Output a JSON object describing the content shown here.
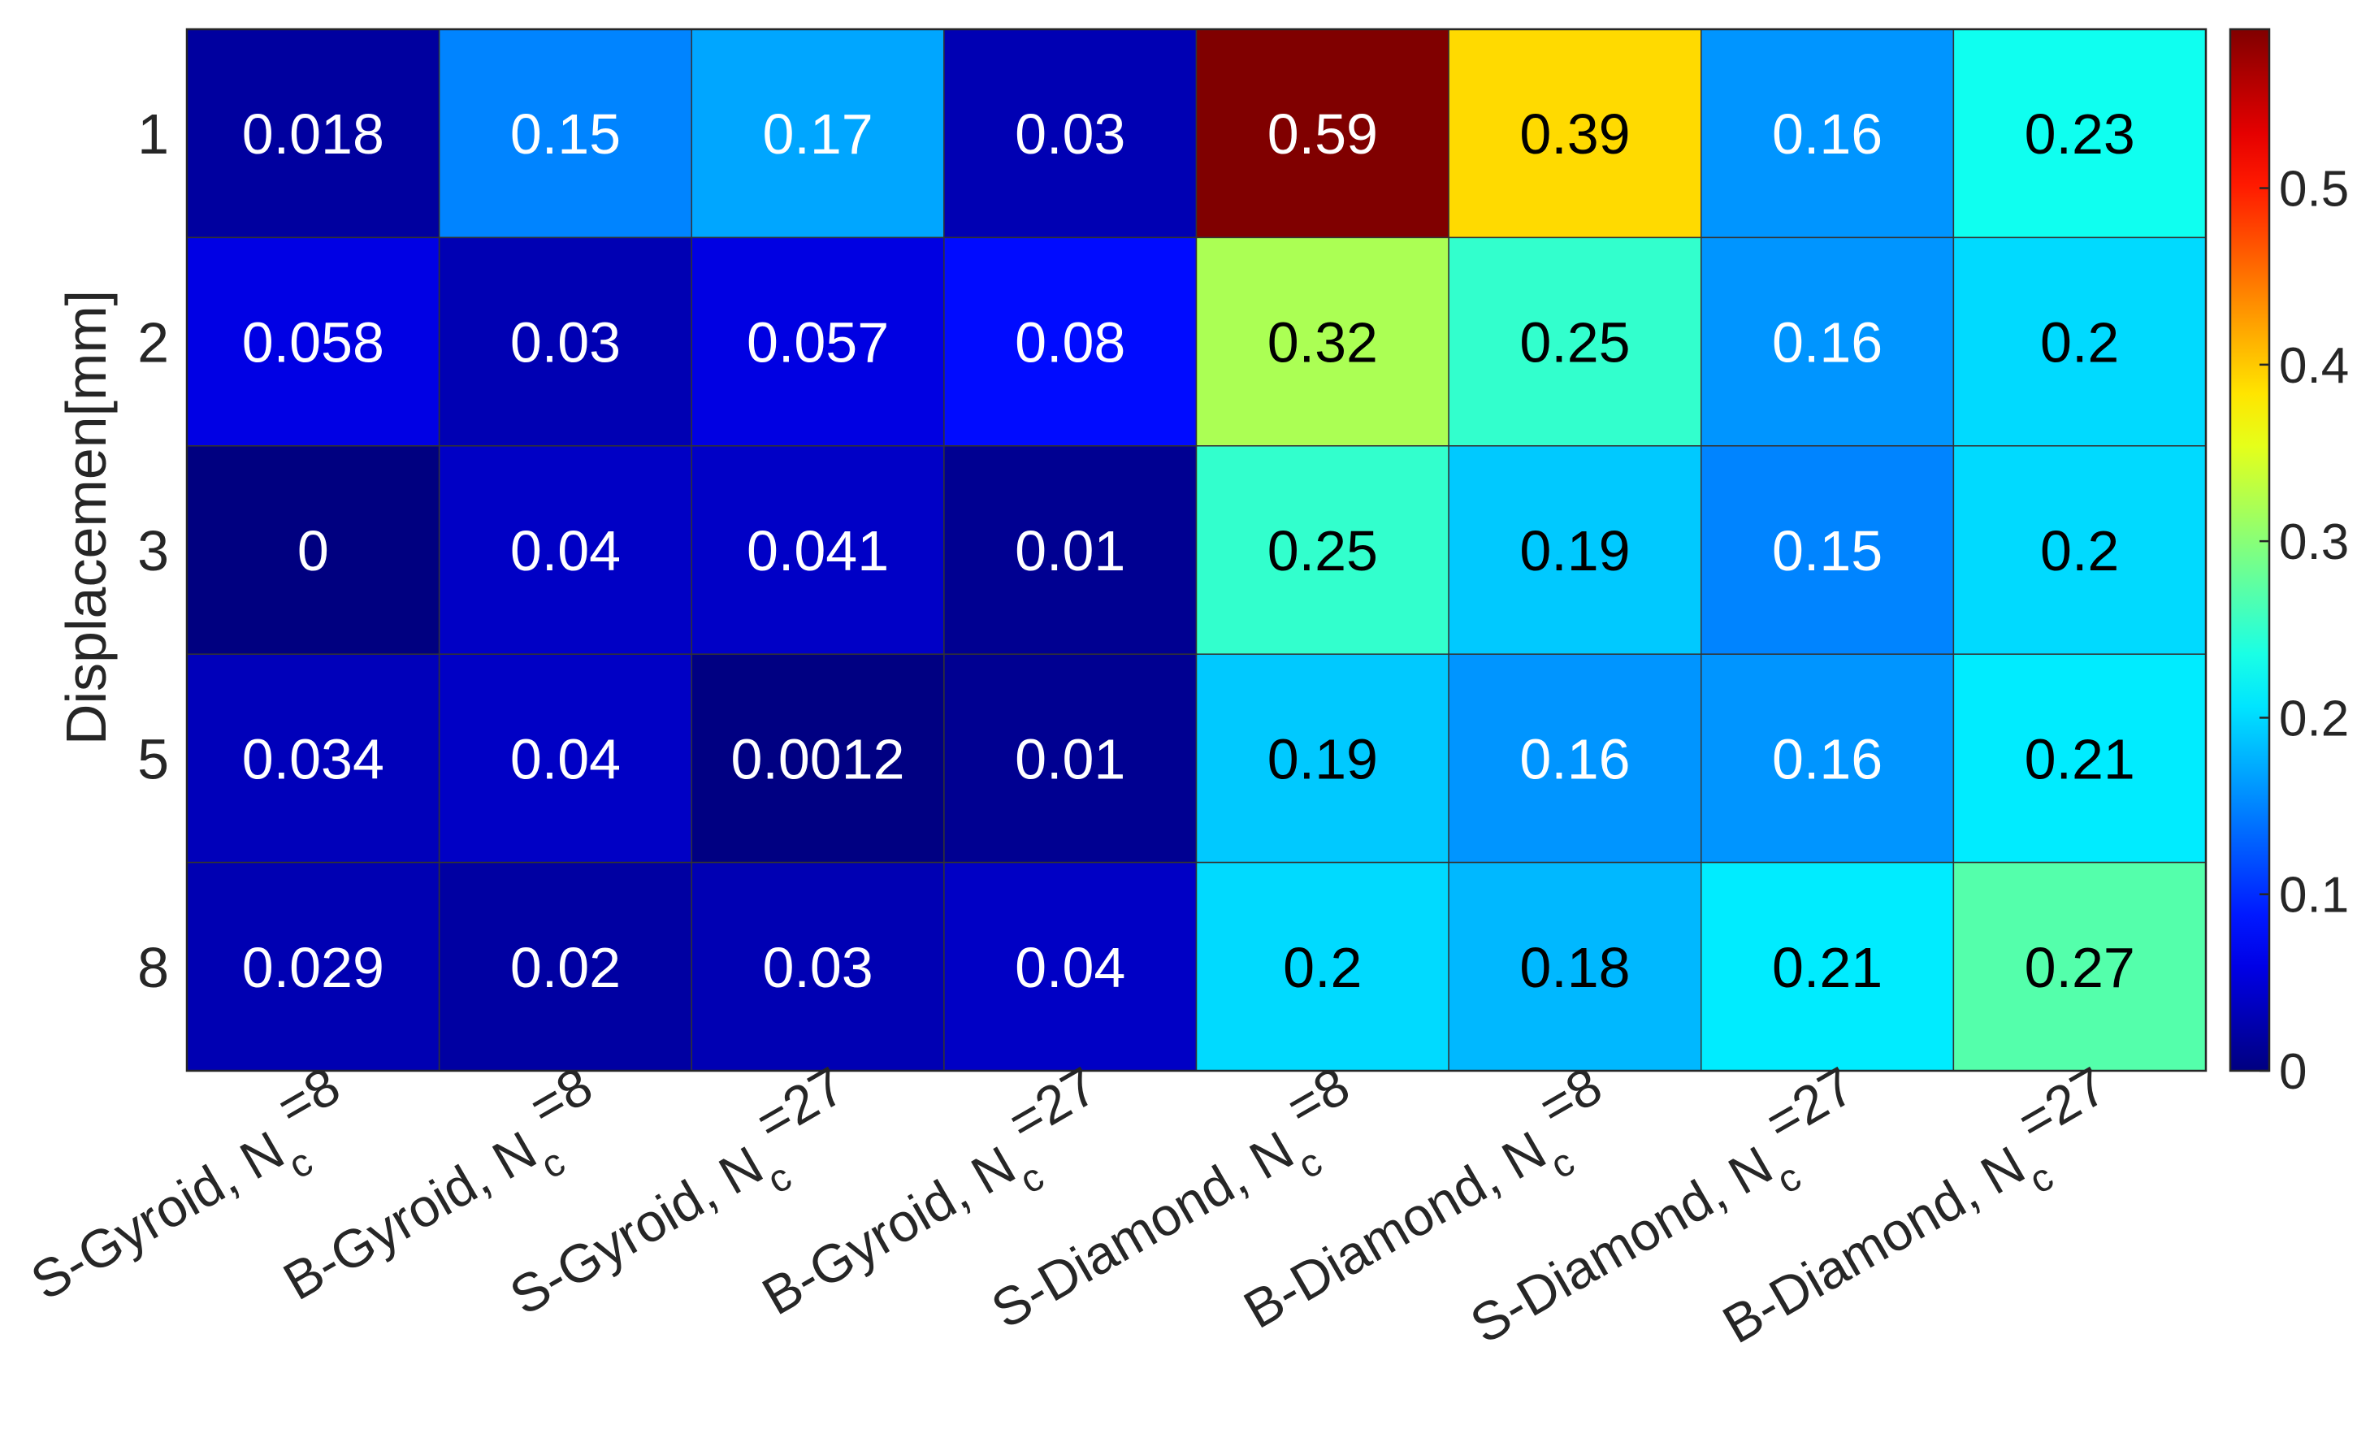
{
  "chart_data": {
    "type": "heatmap",
    "title": "",
    "xlabel": "",
    "ylabel": "Displacemen[mm]",
    "x_categories": [
      {
        "base": "S-Gyroid, N",
        "sub": "c",
        "suffix": "=8"
      },
      {
        "base": "B-Gyroid, N",
        "sub": "c",
        "suffix": "=8"
      },
      {
        "base": "S-Gyroid, N",
        "sub": "c",
        "suffix": "=27"
      },
      {
        "base": "B-Gyroid, N",
        "sub": "c",
        "suffix": "=27"
      },
      {
        "base": "S-Diamond, N",
        "sub": "c",
        "suffix": "=8"
      },
      {
        "base": "B-Diamond, N",
        "sub": "c",
        "suffix": "=8"
      },
      {
        "base": "S-Diamond, N",
        "sub": "c",
        "suffix": "=27"
      },
      {
        "base": "B-Diamond, N",
        "sub": "c",
        "suffix": "=27"
      }
    ],
    "y_categories": [
      "1",
      "2",
      "3",
      "5",
      "8"
    ],
    "values": [
      [
        "0.018",
        "0.15",
        "0.17",
        "0.03",
        "0.59",
        "0.39",
        "0.16",
        "0.23"
      ],
      [
        "0.058",
        "0.03",
        "0.057",
        "0.08",
        "0.32",
        "0.25",
        "0.16",
        "0.2"
      ],
      [
        "0",
        "0.04",
        "0.041",
        "0.01",
        "0.25",
        "0.19",
        "0.15",
        "0.2"
      ],
      [
        "0.034",
        "0.04",
        "0.0012",
        "0.01",
        "0.19",
        "0.16",
        "0.16",
        "0.21"
      ],
      [
        "0.029",
        "0.02",
        "0.03",
        "0.04",
        "0.2",
        "0.18",
        "0.21",
        "0.27"
      ]
    ],
    "colorbar": {
      "colormap": "jet",
      "range": [
        0,
        0.59
      ],
      "ticks": [
        "0",
        "0.1",
        "0.2",
        "0.3",
        "0.4",
        "0.5"
      ]
    },
    "text_colors": {
      "light": "#ffffff",
      "dark": "#000000"
    },
    "grid_color": "#333333",
    "axis_color": "#262626"
  }
}
